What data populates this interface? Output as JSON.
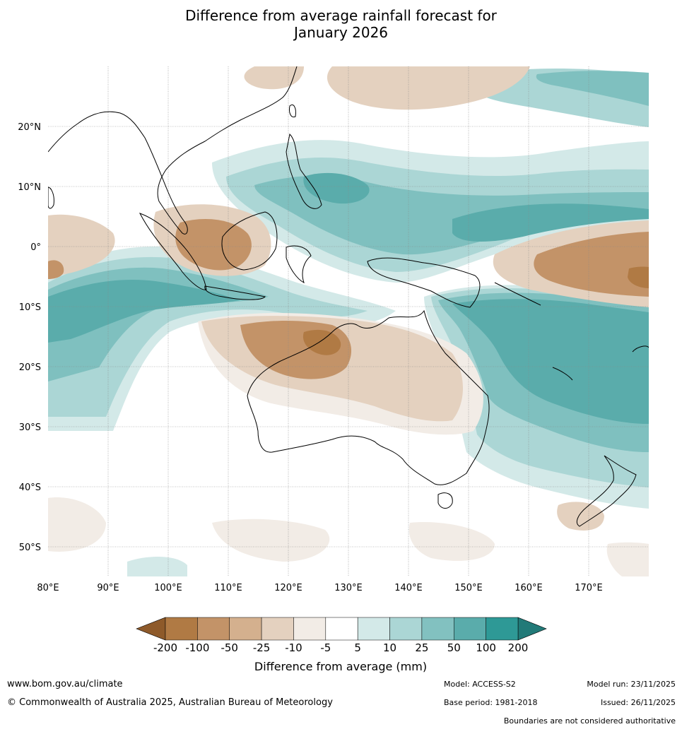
{
  "title_line1": "Difference from average rainfall forecast for",
  "title_line2": "January 2026",
  "map": {
    "lon_ticks": [
      "80°E",
      "90°E",
      "100°E",
      "110°E",
      "120°E",
      "130°E",
      "140°E",
      "150°E",
      "160°E",
      "170°E"
    ],
    "lat_ticks": [
      "20°N",
      "10°N",
      "0°",
      "10°S",
      "20°S",
      "30°S",
      "40°S",
      "50°S"
    ],
    "colors": {
      "ocean_white": "#ffffff",
      "dry_strong": "#b07a44",
      "dry_mid": "#c39368",
      "dry_light": "#e4d1bf",
      "dry_faint": "#f2ece6",
      "wet_faint": "#d3e9e8",
      "wet_light": "#abd6d5",
      "wet_mid": "#7fc0bf",
      "wet_strong": "#5aacab"
    }
  },
  "colorbar": {
    "label": "Difference from average (mm)",
    "ticks": [
      "-200",
      "-100",
      "-50",
      "-25",
      "-10",
      "-5",
      "5",
      "10",
      "25",
      "50",
      "100",
      "200"
    ],
    "colors": [
      "#8e5a2a",
      "#b07a44",
      "#c39368",
      "#d4b08e",
      "#e4d1bf",
      "#f2ece6",
      "#ffffff",
      "#d3e9e8",
      "#abd6d5",
      "#82c1c0",
      "#5aacab",
      "#2e9996",
      "#227a78"
    ]
  },
  "footer": {
    "website": "www.bom.gov.au/climate",
    "copyright": "© Commonwealth of Australia 2025, Australian Bureau of Meteorology",
    "model": "Model: ACCESS-S2",
    "base_period": "Base period: 1981-2018",
    "model_run": "Model run: 23/11/2025",
    "issued": "Issued: 26/11/2025",
    "boundaries": "Boundaries are not considered authoritative"
  }
}
